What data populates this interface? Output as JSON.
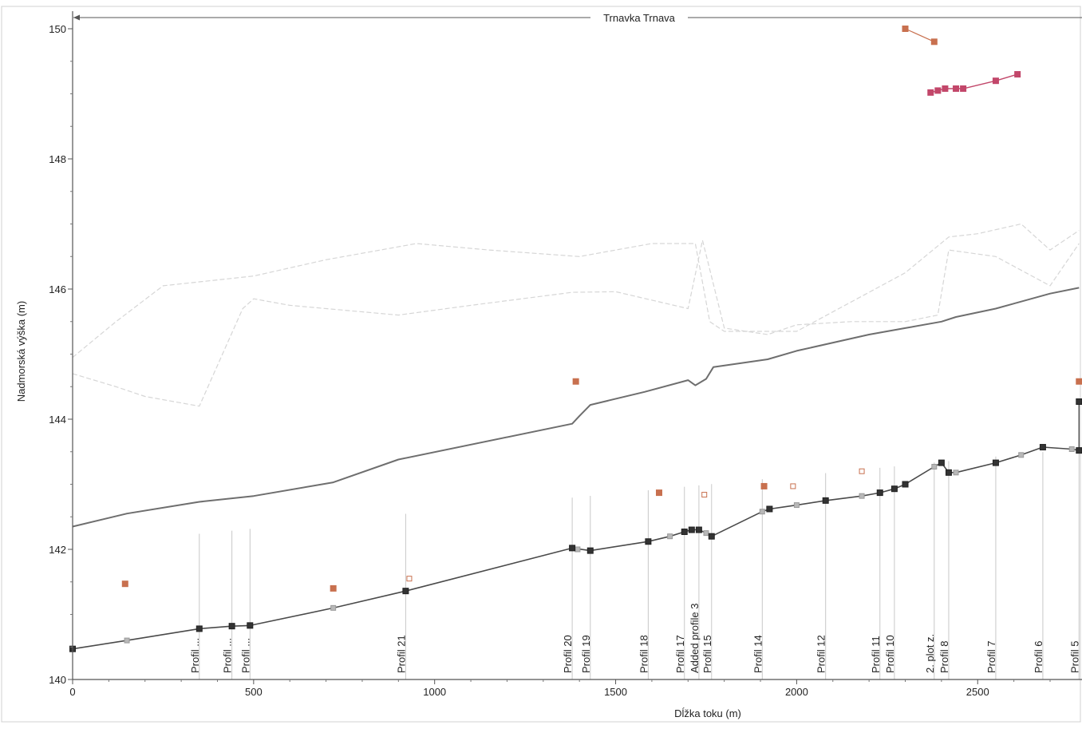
{
  "chart_data": {
    "type": "line",
    "title": "Trnavka Trnava",
    "xlabel": "Dĺžka toku (m)",
    "ylabel": "Nadmorská výška (m)",
    "xlim": [
      0,
      2780
    ],
    "ylim": [
      140,
      150.2
    ],
    "xticks": [
      0,
      500,
      1000,
      1500,
      2000,
      2500
    ],
    "yticks": [
      140,
      142,
      144,
      146,
      148,
      150
    ],
    "grid": false,
    "colors": {
      "bed": "#4a4a4a",
      "water": "#6e6e6e",
      "bank": "#d6d6d6",
      "marker_orange": "#c8704f",
      "marker_pink": "#c2476a",
      "profile_line": "#c8c8c8"
    },
    "series": [
      {
        "key": "water-surface",
        "points": [
          [
            0,
            142.35
          ],
          [
            150,
            142.55
          ],
          [
            350,
            142.73
          ],
          [
            500,
            142.82
          ],
          [
            720,
            143.03
          ],
          [
            900,
            143.38
          ],
          [
            1380,
            143.93
          ],
          [
            1400,
            144.05
          ],
          [
            1430,
            144.22
          ],
          [
            1580,
            144.42
          ],
          [
            1700,
            144.6
          ],
          [
            1720,
            144.52
          ],
          [
            1750,
            144.62
          ],
          [
            1770,
            144.8
          ],
          [
            1920,
            144.92
          ],
          [
            2000,
            145.05
          ],
          [
            2200,
            145.3
          ],
          [
            2300,
            145.4
          ],
          [
            2400,
            145.5
          ],
          [
            2440,
            145.57
          ],
          [
            2550,
            145.7
          ],
          [
            2700,
            145.93
          ],
          [
            2780,
            146.02
          ]
        ]
      },
      {
        "key": "channel-bed",
        "points": [
          [
            0,
            140.47
          ],
          [
            150,
            140.6
          ],
          [
            350,
            140.78
          ],
          [
            440,
            140.82
          ],
          [
            490,
            140.83
          ],
          [
            720,
            141.1
          ],
          [
            920,
            141.36
          ],
          [
            1380,
            142.02
          ],
          [
            1430,
            141.98
          ],
          [
            1590,
            142.12
          ],
          [
            1650,
            142.2
          ],
          [
            1690,
            142.27
          ],
          [
            1710,
            142.3
          ],
          [
            1730,
            142.3
          ],
          [
            1750,
            142.25
          ],
          [
            1765,
            142.2
          ],
          [
            1905,
            142.58
          ],
          [
            1925,
            142.62
          ],
          [
            2000,
            142.68
          ],
          [
            2080,
            142.75
          ],
          [
            2180,
            142.82
          ],
          [
            2230,
            142.87
          ],
          [
            2270,
            142.93
          ],
          [
            2300,
            143.0
          ],
          [
            2380,
            143.27
          ],
          [
            2400,
            143.33
          ],
          [
            2420,
            143.18
          ],
          [
            2440,
            143.18
          ],
          [
            2550,
            143.33
          ],
          [
            2620,
            143.45
          ],
          [
            2680,
            143.57
          ],
          [
            2760,
            143.54
          ],
          [
            2780,
            143.52
          ]
        ]
      },
      {
        "key": "right-bank",
        "points": [
          [
            0,
            144.7
          ],
          [
            120,
            144.5
          ],
          [
            200,
            144.35
          ],
          [
            350,
            144.2
          ],
          [
            470,
            145.7
          ],
          [
            500,
            145.85
          ],
          [
            600,
            145.75
          ],
          [
            900,
            145.6
          ],
          [
            1100,
            145.75
          ],
          [
            1380,
            145.95
          ],
          [
            1500,
            145.96
          ],
          [
            1700,
            145.7
          ],
          [
            1740,
            146.75
          ],
          [
            1760,
            146.3
          ],
          [
            1800,
            145.4
          ],
          [
            1920,
            145.3
          ],
          [
            2000,
            145.45
          ],
          [
            2150,
            145.5
          ],
          [
            2300,
            145.5
          ],
          [
            2390,
            145.6
          ],
          [
            2420,
            146.6
          ],
          [
            2550,
            146.5
          ],
          [
            2700,
            146.05
          ],
          [
            2780,
            146.7
          ]
        ]
      },
      {
        "key": "left-bank",
        "points": [
          [
            0,
            144.95
          ],
          [
            120,
            145.5
          ],
          [
            250,
            146.05
          ],
          [
            500,
            146.2
          ],
          [
            700,
            146.45
          ],
          [
            950,
            146.7
          ],
          [
            1150,
            146.6
          ],
          [
            1400,
            146.5
          ],
          [
            1600,
            146.7
          ],
          [
            1720,
            146.7
          ],
          [
            1760,
            145.5
          ],
          [
            1800,
            145.35
          ],
          [
            2000,
            145.35
          ],
          [
            2200,
            145.95
          ],
          [
            2300,
            146.25
          ],
          [
            2420,
            146.8
          ],
          [
            2500,
            146.85
          ],
          [
            2620,
            147.0
          ],
          [
            2700,
            146.6
          ],
          [
            2780,
            146.9
          ]
        ]
      }
    ],
    "bed_markers_dark": [
      [
        350,
        140.78
      ],
      [
        440,
        140.82
      ],
      [
        490,
        140.83
      ],
      [
        920,
        141.36
      ],
      [
        1380,
        142.02
      ],
      [
        1430,
        141.98
      ],
      [
        1590,
        142.12
      ],
      [
        1690,
        142.27
      ],
      [
        1710,
        142.3
      ],
      [
        1730,
        142.3
      ],
      [
        1765,
        142.2
      ],
      [
        1925,
        142.62
      ],
      [
        2080,
        142.75
      ],
      [
        2230,
        142.87
      ],
      [
        2270,
        142.93
      ],
      [
        2300,
        143.0
      ],
      [
        2400,
        143.33
      ],
      [
        2420,
        143.18
      ],
      [
        2550,
        143.33
      ],
      [
        2680,
        143.57
      ],
      [
        2780,
        143.52
      ],
      [
        0,
        140.47
      ],
      [
        2780,
        144.27
      ]
    ],
    "bed_markers_light": [
      [
        150,
        140.6
      ],
      [
        720,
        141.1
      ],
      [
        1395,
        142.0
      ],
      [
        1650,
        142.2
      ],
      [
        1750,
        142.25
      ],
      [
        1905,
        142.58
      ],
      [
        2000,
        142.68
      ],
      [
        2180,
        142.82
      ],
      [
        2380,
        143.27
      ],
      [
        2440,
        143.18
      ],
      [
        2620,
        143.45
      ],
      [
        2760,
        143.54
      ]
    ],
    "orange_filled": [
      [
        145,
        141.47
      ],
      [
        720,
        141.4
      ],
      [
        1390,
        144.58
      ],
      [
        1620,
        142.87
      ],
      [
        1910,
        142.97
      ],
      [
        2780,
        144.58
      ]
    ],
    "orange_open": [
      [
        930,
        141.55
      ],
      [
        1745,
        142.84
      ],
      [
        1990,
        142.97
      ],
      [
        2180,
        143.2
      ]
    ],
    "orange_top_segment": [
      [
        2300,
        150.0
      ],
      [
        2380,
        149.8
      ]
    ],
    "pink_segment": [
      [
        2370,
        149.02
      ],
      [
        2390,
        149.05
      ],
      [
        2410,
        149.08
      ],
      [
        2440,
        149.08
      ],
      [
        2460,
        149.08
      ],
      [
        2550,
        149.2
      ],
      [
        2610,
        149.3
      ]
    ],
    "profiles": [
      {
        "label": "Profil ...",
        "x": 350
      },
      {
        "label": "Profil ...",
        "x": 440
      },
      {
        "label": "Profil ...",
        "x": 490
      },
      {
        "label": "Profil 21",
        "x": 920
      },
      {
        "label": "Profil 20",
        "x": 1380
      },
      {
        "label": "Profil 19",
        "x": 1430
      },
      {
        "label": "Profil 18",
        "x": 1590
      },
      {
        "label": "Profil 17",
        "x": 1690
      },
      {
        "label": "Added profile 3",
        "x": 1730
      },
      {
        "label": "Profil 15",
        "x": 1765
      },
      {
        "label": "Profil 14",
        "x": 1905
      },
      {
        "label": "Profil 12",
        "x": 2080
      },
      {
        "label": "Profil 11",
        "x": 2230
      },
      {
        "label": "Profil 10",
        "x": 2270
      },
      {
        "label": "2. plot z.",
        "x": 2380
      },
      {
        "label": "Profil 8",
        "x": 2420
      },
      {
        "label": "Profil 7",
        "x": 2550
      },
      {
        "label": "Profil 6",
        "x": 2680
      },
      {
        "label": "Profil 5",
        "x": 2780
      }
    ]
  }
}
